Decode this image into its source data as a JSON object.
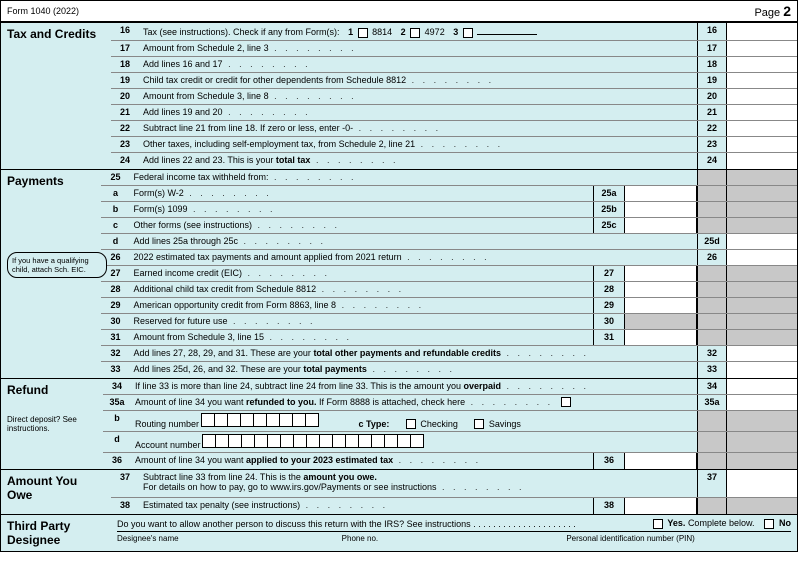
{
  "header": {
    "form": "Form 1040 (2022)",
    "page": "Page",
    "pageNum": "2"
  },
  "sections": {
    "taxCredits": {
      "label": "Tax and Credits",
      "lines": [
        {
          "no": "16",
          "text": "Tax (see instructions). Check if any from Form(s):",
          "checks": [
            {
              "n": "1",
              "l": "8814"
            },
            {
              "n": "2",
              "l": "4972"
            },
            {
              "n": "3",
              "l": ""
            }
          ],
          "rightNo": "16"
        },
        {
          "no": "17",
          "text": "Amount from Schedule 2, line 3",
          "rightNo": "17"
        },
        {
          "no": "18",
          "text": "Add lines 16 and 17",
          "rightNo": "18"
        },
        {
          "no": "19",
          "text": "Child tax credit or credit for other dependents from Schedule 8812",
          "rightNo": "19"
        },
        {
          "no": "20",
          "text": "Amount from Schedule 3, line 8",
          "rightNo": "20"
        },
        {
          "no": "21",
          "text": "Add lines 19 and 20",
          "rightNo": "21"
        },
        {
          "no": "22",
          "text": "Subtract line 21 from line 18. If zero or less, enter -0-",
          "rightNo": "22"
        },
        {
          "no": "23",
          "text": "Other taxes, including self-employment tax, from Schedule 2, line 21",
          "rightNo": "23"
        },
        {
          "no": "24",
          "text": "Add lines 22 and 23. This is your ",
          "bold": "total tax",
          "rightNo": "24"
        }
      ]
    },
    "payments": {
      "label": "Payments",
      "note": "If you have a qualifying child, attach Sch. EIC.",
      "lines": [
        {
          "no": "25",
          "text": "Federal income tax withheld from:",
          "grayAll": true
        },
        {
          "no": "a",
          "text": "Form(s) W-2",
          "midNo": "25a",
          "grayRight": true
        },
        {
          "no": "b",
          "text": "Form(s) 1099",
          "midNo": "25b",
          "grayRight": true
        },
        {
          "no": "c",
          "text": "Other forms (see instructions)",
          "midNo": "25c",
          "grayRight": true
        },
        {
          "no": "d",
          "text": "Add lines 25a through 25c",
          "rightNo": "25d"
        },
        {
          "no": "26",
          "text": "2022 estimated tax payments and amount applied from 2021 return",
          "rightNo": "26"
        },
        {
          "no": "27",
          "text": "Earned income credit (EIC)",
          "midNo": "27",
          "grayRight": true
        },
        {
          "no": "28",
          "text": "Additional child tax credit from Schedule 8812",
          "midNo": "28",
          "grayRight": true
        },
        {
          "no": "29",
          "text": "American opportunity credit from Form 8863, line 8",
          "midNo": "29",
          "grayRight": true
        },
        {
          "no": "30",
          "text": "Reserved for future use",
          "midNo": "30",
          "midGray": true,
          "grayRight": true
        },
        {
          "no": "31",
          "text": "Amount from Schedule 3, line 15",
          "midNo": "31",
          "grayRight": true
        },
        {
          "no": "32",
          "text": "Add lines 27, 28, 29, and 31. These are your ",
          "bold": "total other payments and refundable credits",
          "rightNo": "32"
        },
        {
          "no": "33",
          "text": "Add lines 25d, 26, and 32. These are your ",
          "bold": "total payments",
          "rightNo": "33"
        }
      ]
    },
    "refund": {
      "label": "Refund",
      "sublabel": "Direct deposit? See instructions.",
      "lines": [
        {
          "no": "34",
          "text": "If line 33 is more than line 24, subtract line 24 from line 33. This is the amount you ",
          "bold": "overpaid",
          "rightNo": "34"
        },
        {
          "no": "35a",
          "text": "Amount of line 34 you want ",
          "bold": "refunded to you.",
          "text2": " If Form 8888 is attached, check here",
          "endCheck": true,
          "rightNo": "35a"
        },
        {
          "no": "b",
          "text": "Routing number",
          "routing": 9,
          "typeLabel": "c Type:",
          "checking": "Checking",
          "savings": "Savings",
          "grayRight": true
        },
        {
          "no": "d",
          "text": "Account number",
          "routing": 17,
          "grayRight": true
        },
        {
          "no": "36",
          "text": "Amount of line 34 you want ",
          "bold": "applied to your 2023 estimated tax",
          "midNo": "36",
          "grayRight": true
        }
      ]
    },
    "amountOwe": {
      "label": "Amount You Owe",
      "lines": [
        {
          "no": "37",
          "text": "Subtract line 33 from line 24. This is the ",
          "bold": "amount you owe.",
          "text2br": "For details on how to pay, go to www.irs.gov/Payments or see instructions",
          "rightNo": "37",
          "tall": true
        },
        {
          "no": "38",
          "text": "Estimated tax penalty (see instructions)",
          "midNo": "38",
          "grayRight": true
        }
      ]
    },
    "designee": {
      "label": "Third Party Designee",
      "question": "Do you want to allow another person to discuss this return with the IRS? See instructions",
      "yes": "Yes.",
      "yesText": "Complete below.",
      "no": "No",
      "desName": "Designee's name",
      "phone": "Phone no.",
      "pin": "Personal identification number (PIN)"
    }
  },
  "colors": {
    "bg": "#d4eef0",
    "gray": "#c8c8c8",
    "white": "#ffffff",
    "border": "#000000"
  }
}
